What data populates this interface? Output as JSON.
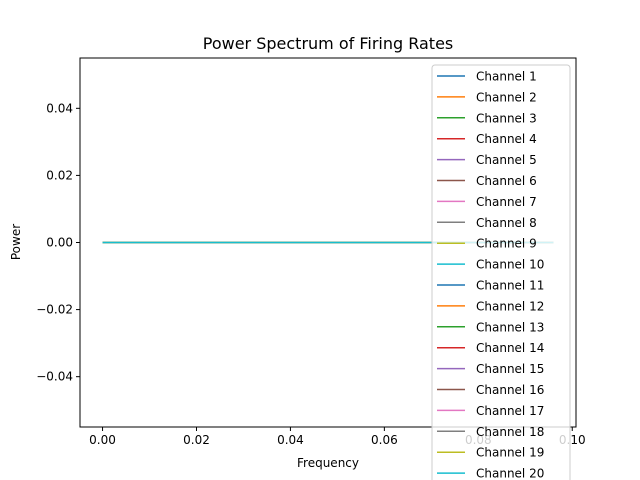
{
  "chart_data": {
    "type": "line",
    "title": "Power Spectrum of Firing Rates",
    "xlabel": "Frequency",
    "ylabel": "Power",
    "xlim": [
      -0.0048,
      0.1008
    ],
    "ylim": [
      -0.055,
      0.055
    ],
    "xticks": [
      0.0,
      0.02,
      0.04,
      0.06,
      0.08,
      0.1
    ],
    "xtick_labels": [
      "0.00",
      "0.02",
      "0.04",
      "0.06",
      "0.08",
      "0.10"
    ],
    "yticks": [
      -0.04,
      -0.02,
      0.0,
      0.02,
      0.04
    ],
    "ytick_labels": [
      "−0.04",
      "−0.02",
      "0.00",
      "0.02",
      "0.04"
    ],
    "grid": false,
    "legend_position": "upper right",
    "x": [
      0.0,
      0.02,
      0.04,
      0.06,
      0.08,
      0.096
    ],
    "series": [
      {
        "name": "Channel 1",
        "color": "#1f77b4",
        "values": [
          0,
          0,
          0,
          0,
          0,
          0
        ]
      },
      {
        "name": "Channel 2",
        "color": "#ff7f0e",
        "values": [
          0,
          0,
          0,
          0,
          0,
          0
        ]
      },
      {
        "name": "Channel 3",
        "color": "#2ca02c",
        "values": [
          0,
          0,
          0,
          0,
          0,
          0
        ]
      },
      {
        "name": "Channel 4",
        "color": "#d62728",
        "values": [
          0,
          0,
          0,
          0,
          0,
          0
        ]
      },
      {
        "name": "Channel 5",
        "color": "#9467bd",
        "values": [
          0,
          0,
          0,
          0,
          0,
          0
        ]
      },
      {
        "name": "Channel 6",
        "color": "#8c564b",
        "values": [
          0,
          0,
          0,
          0,
          0,
          0
        ]
      },
      {
        "name": "Channel 7",
        "color": "#e377c2",
        "values": [
          0,
          0,
          0,
          0,
          0,
          0
        ]
      },
      {
        "name": "Channel 8",
        "color": "#7f7f7f",
        "values": [
          0,
          0,
          0,
          0,
          0,
          0
        ]
      },
      {
        "name": "Channel 9",
        "color": "#bcbd22",
        "values": [
          0,
          0,
          0,
          0,
          0,
          0
        ]
      },
      {
        "name": "Channel 10",
        "color": "#17becf",
        "values": [
          0,
          0,
          0,
          0,
          0,
          0
        ]
      },
      {
        "name": "Channel 11",
        "color": "#1f77b4",
        "values": [
          0,
          0,
          0,
          0,
          0,
          0
        ]
      },
      {
        "name": "Channel 12",
        "color": "#ff7f0e",
        "values": [
          0,
          0,
          0,
          0,
          0,
          0
        ]
      },
      {
        "name": "Channel 13",
        "color": "#2ca02c",
        "values": [
          0,
          0,
          0,
          0,
          0,
          0
        ]
      },
      {
        "name": "Channel 14",
        "color": "#d62728",
        "values": [
          0,
          0,
          0,
          0,
          0,
          0
        ]
      },
      {
        "name": "Channel 15",
        "color": "#9467bd",
        "values": [
          0,
          0,
          0,
          0,
          0,
          0
        ]
      },
      {
        "name": "Channel 16",
        "color": "#8c564b",
        "values": [
          0,
          0,
          0,
          0,
          0,
          0
        ]
      },
      {
        "name": "Channel 17",
        "color": "#e377c2",
        "values": [
          0,
          0,
          0,
          0,
          0,
          0
        ]
      },
      {
        "name": "Channel 18",
        "color": "#7f7f7f",
        "values": [
          0,
          0,
          0,
          0,
          0,
          0
        ]
      },
      {
        "name": "Channel 19",
        "color": "#bcbd22",
        "values": [
          0,
          0,
          0,
          0,
          0,
          0
        ]
      },
      {
        "name": "Channel 20",
        "color": "#17becf",
        "values": [
          0,
          0,
          0,
          0,
          0,
          0
        ]
      }
    ]
  }
}
